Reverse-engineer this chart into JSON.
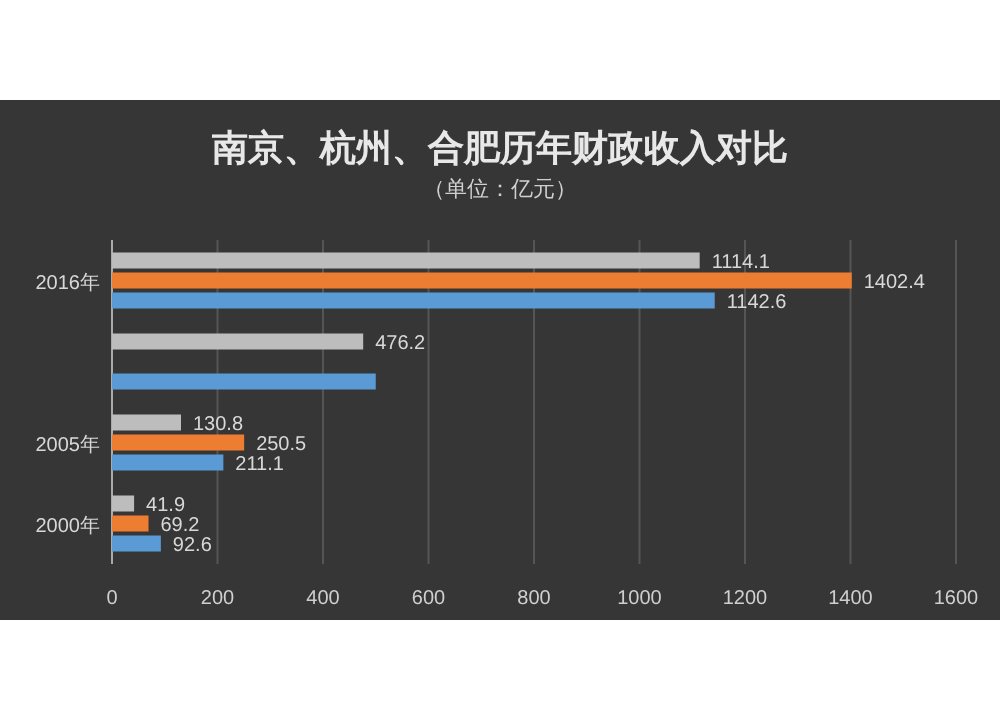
{
  "chart_data": {
    "type": "bar",
    "orientation": "horizontal",
    "title": "南京、杭州、合肥历年财政收入对比",
    "subtitle": "（单位：亿元）",
    "categories": [
      "2016年",
      null,
      "2005年",
      "2000年"
    ],
    "series": [
      {
        "color": "#bdbdbd",
        "values": [
          1114.1,
          476.2,
          130.8,
          41.9
        ],
        "value_labels": [
          "1114.1",
          "476.2",
          "130.8",
          "41.9"
        ]
      },
      {
        "color": "#ed7d31",
        "values": [
          1402.4,
          null,
          250.5,
          69.2
        ],
        "value_labels": [
          "1402.4",
          null,
          "250.5",
          "69.2"
        ]
      },
      {
        "color": "#5b9bd5",
        "values": [
          1142.6,
          500,
          211.1,
          92.6
        ],
        "value_labels": [
          "1142.6",
          null,
          "211.1",
          "92.6"
        ]
      }
    ],
    "xlim": [
      0,
      1600
    ],
    "xticks": [
      0,
      200,
      400,
      600,
      800,
      1000,
      1200,
      1400,
      1600
    ],
    "grid": "x"
  }
}
